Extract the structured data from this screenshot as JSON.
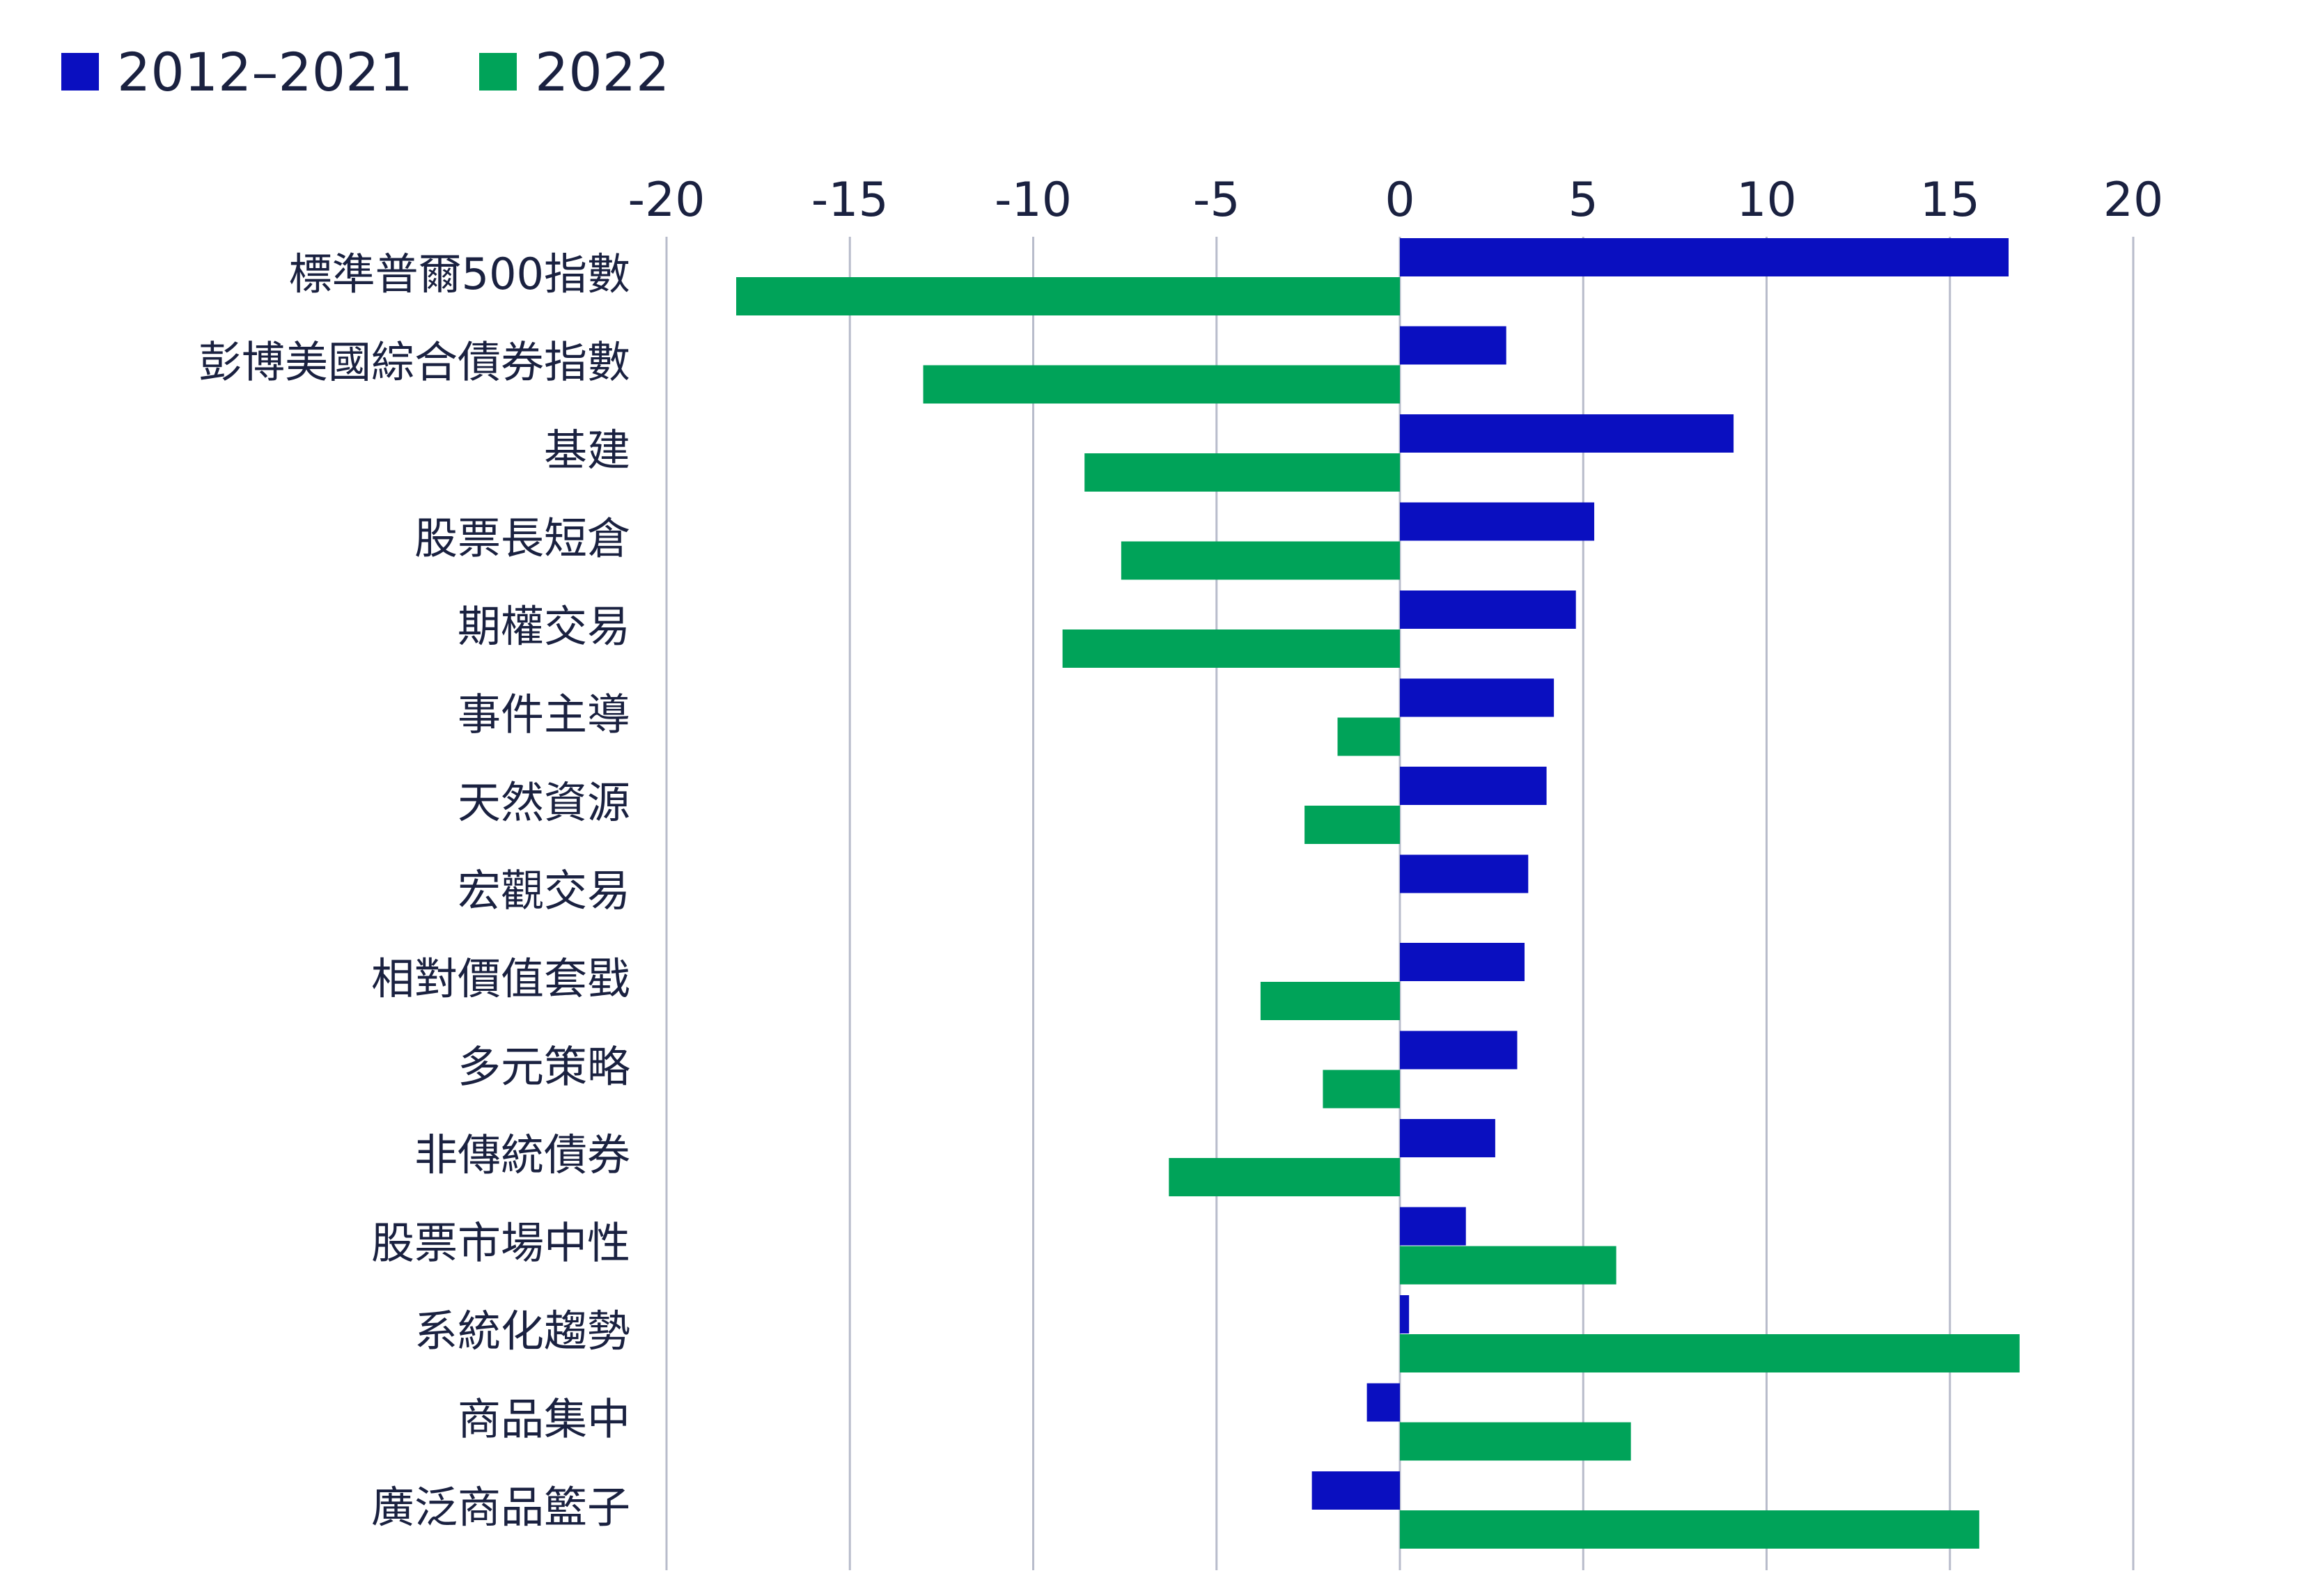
{
  "chart_data": {
    "type": "bar",
    "orientation": "horizontal",
    "title": "",
    "xlabel": "",
    "ylabel": "",
    "xlim": [
      -20,
      20
    ],
    "x_ticks": [
      -20,
      -15,
      -10,
      -5,
      0,
      5,
      10,
      15,
      20
    ],
    "x_tick_labels": [
      "-20",
      "-15",
      "-10",
      "-5",
      "0",
      "5",
      "10",
      "15",
      "20"
    ],
    "grid": true,
    "legend_position": "top-left",
    "categories": [
      "標準普爾500指數",
      "彭博美國綜合債券指數",
      "基建",
      "股票長短倉",
      "期權交易",
      "事件主導",
      "天然資源",
      "宏觀交易",
      "相對價值套戥",
      "多元策略",
      "非傳統債券",
      "股票市場中性",
      "系統化趨勢",
      "商品集中",
      "廣泛商品籃子"
    ],
    "series": [
      {
        "name": "2012–2021",
        "color": "#0a0fc0",
        "values": [
          16.6,
          2.9,
          9.1,
          5.3,
          4.8,
          4.2,
          4.0,
          3.5,
          3.4,
          3.2,
          2.6,
          1.8,
          0.25,
          -0.9,
          -2.4
        ]
      },
      {
        "name": "2022",
        "color": "#00a359",
        "values": [
          -18.1,
          -13.0,
          -8.6,
          -7.6,
          -9.2,
          -1.7,
          -2.6,
          0,
          -3.8,
          -2.1,
          -6.3,
          5.9,
          16.9,
          6.3,
          15.8
        ]
      }
    ]
  }
}
